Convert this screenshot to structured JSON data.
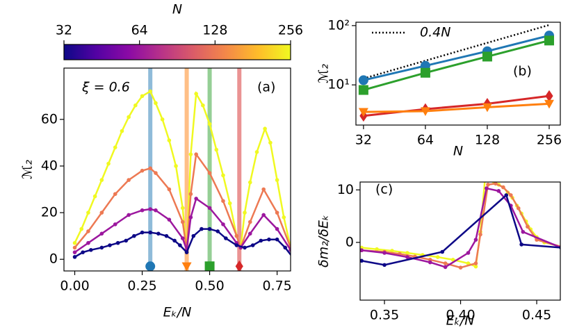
{
  "chart_data": [
    {
      "type": "line",
      "xlabel": "Eₖ/N",
      "ylabel": "ℳ₂",
      "annotations": [
        "ξ = 0.6",
        "(a)"
      ],
      "xlim": [
        -0.04,
        0.8
      ],
      "ylim": [
        -5,
        82
      ],
      "xticks": [
        {
          "value": 0,
          "label": "0.00"
        },
        0.25,
        {
          "value": 0.5,
          "label": "0.50"
        },
        0.75
      ],
      "yticks": [
        0,
        20,
        40,
        60
      ],
      "colorbar": {
        "label": "N",
        "lim": [
          32,
          256
        ],
        "scale": "log",
        "ticks": [
          32,
          64,
          128,
          256
        ],
        "colors": [
          "#0d0887",
          "#5302a3",
          "#8b0aa5",
          "#b83289",
          "#db5c68",
          "#f48849",
          "#febd2a",
          "#f0f921"
        ]
      },
      "vlines": [
        {
          "x": 0.28,
          "color": "#1f77b4",
          "marker": "circle"
        },
        {
          "x": 0.415,
          "color": "#ff7f0e",
          "marker": "triangle"
        },
        {
          "x": 0.5,
          "color": "#2ca02c",
          "marker": "square"
        },
        {
          "x": 0.61,
          "color": "#d62728",
          "marker": "diamond"
        }
      ],
      "marker_y": -3,
      "series": [
        {
          "color": "#f0f921",
          "marker": "dot",
          "x": [
            0,
            0.025,
            0.05,
            0.075,
            0.1,
            0.125,
            0.15,
            0.175,
            0.2,
            0.225,
            0.25,
            0.28,
            0.3,
            0.325,
            0.35,
            0.375,
            0.4,
            0.415,
            0.43,
            0.45,
            0.475,
            0.5,
            0.525,
            0.55,
            0.575,
            0.6,
            0.615,
            0.63,
            0.65,
            0.675,
            0.705,
            0.725,
            0.75,
            0.775,
            0.8,
            0.81
          ],
          "values": [
            7,
            13,
            20,
            27,
            34,
            41,
            48,
            55,
            61,
            66,
            70,
            72,
            67,
            60,
            51,
            40,
            22,
            3,
            45,
            71,
            66,
            58,
            47,
            36,
            24,
            10,
            5,
            20,
            33,
            46,
            56,
            50,
            34,
            18,
            5,
            1
          ]
        },
        {
          "color": "#ed7953",
          "marker": "dot",
          "x": [
            0,
            0.05,
            0.1,
            0.15,
            0.2,
            0.25,
            0.28,
            0.3,
            0.35,
            0.4,
            0.415,
            0.43,
            0.45,
            0.5,
            0.55,
            0.6,
            0.615,
            0.65,
            0.7,
            0.75,
            0.8,
            0.81
          ],
          "values": [
            5,
            12,
            20,
            28,
            34,
            38,
            39,
            37,
            30,
            16,
            4,
            28,
            45,
            37,
            25,
            10,
            5,
            16,
            30,
            20,
            5,
            1
          ]
        },
        {
          "color": "#9c179e",
          "marker": "dot",
          "x": [
            0,
            0.05,
            0.1,
            0.15,
            0.2,
            0.25,
            0.28,
            0.3,
            0.35,
            0.4,
            0.415,
            0.43,
            0.45,
            0.5,
            0.55,
            0.6,
            0.615,
            0.65,
            0.7,
            0.75,
            0.8,
            0.81
          ],
          "values": [
            3,
            7,
            11,
            15,
            19,
            21,
            21.5,
            21,
            17,
            9,
            4,
            18,
            26,
            22,
            15,
            7,
            5,
            11,
            19,
            13,
            4,
            1
          ]
        },
        {
          "color": "#0d0887",
          "marker": "dot",
          "x": [
            0,
            0.03,
            0.06,
            0.1,
            0.13,
            0.16,
            0.19,
            0.22,
            0.25,
            0.28,
            0.31,
            0.34,
            0.37,
            0.39,
            0.415,
            0.44,
            0.47,
            0.5,
            0.53,
            0.56,
            0.6,
            0.63,
            0.66,
            0.69,
            0.72,
            0.75,
            0.78,
            0.81
          ],
          "values": [
            1,
            3,
            4,
            5,
            6,
            7,
            8,
            10,
            11.5,
            11.5,
            11,
            10,
            8,
            6,
            3,
            10,
            13,
            13,
            12,
            9,
            6,
            5,
            6,
            8,
            8.5,
            8.5,
            5,
            0.5
          ]
        }
      ]
    },
    {
      "type": "line",
      "xlabel": "N",
      "ylabel": "ℳ₂",
      "annotations": [
        "(b)"
      ],
      "xscale": "log",
      "yscale": "log",
      "xlim": [
        29.4,
        290
      ],
      "ylim": [
        2.1,
        114
      ],
      "xticks": [
        32,
        64,
        128,
        256
      ],
      "yticks": [
        {
          "value": 10,
          "label": "10¹"
        },
        {
          "value": 100,
          "label": "10²"
        }
      ],
      "x": [
        32,
        64,
        128,
        256
      ],
      "series": [
        {
          "name": "0.4N",
          "color": "#000000",
          "dash": "dotted",
          "values": [
            12.8,
            25.6,
            51.2,
            102.4
          ]
        },
        {
          "color": "#1f77b4",
          "marker": "circle",
          "values": [
            12,
            21,
            37,
            68
          ]
        },
        {
          "color": "#2ca02c",
          "marker": "square",
          "values": [
            8.2,
            16,
            30,
            56
          ]
        },
        {
          "color": "#d62728",
          "marker": "diamond",
          "values": [
            3,
            3.9,
            4.8,
            6.5
          ]
        },
        {
          "color": "#ff7f0e",
          "marker": "triangle",
          "values": [
            3.5,
            3.6,
            4.2,
            4.8
          ]
        }
      ]
    },
    {
      "type": "line",
      "xlabel": "Eₖ/N",
      "ylabel": "δm₂/δEₖ",
      "annotations": [
        "(c)"
      ],
      "xlim": [
        0.334,
        0.4655
      ],
      "ylim": [
        -11,
        11.5
      ],
      "xticks": [
        0.35,
        {
          "value": 0.4,
          "label": "0.40"
        },
        0.45
      ],
      "yticks": [
        0,
        10
      ],
      "series": [
        {
          "color": "#f0f921",
          "marker": "dot",
          "x": [
            0.335,
            0.345,
            0.355,
            0.365,
            0.375,
            0.385,
            0.395,
            0.405,
            0.41,
            0.413,
            0.416,
            0.419,
            0.422,
            0.425,
            0.428,
            0.431,
            0.434,
            0.437,
            0.44,
            0.443,
            0.446,
            0.45,
            0.455,
            0.466
          ],
          "values": [
            -1,
            -1.3,
            -1.6,
            -2,
            -2.4,
            -2.8,
            -3.3,
            -4,
            -4.6,
            2,
            12,
            11.8,
            11.5,
            11,
            10.5,
            9.5,
            8.5,
            7,
            5.5,
            4,
            2.5,
            1,
            0,
            -0.8
          ]
        },
        {
          "color": "#ed7953",
          "marker": "dot",
          "x": [
            0.335,
            0.35,
            0.36,
            0.37,
            0.38,
            0.39,
            0.4,
            0.41,
            0.413,
            0.418,
            0.423,
            0.428,
            0.433,
            0.438,
            0.444,
            0.45,
            0.466
          ],
          "values": [
            -1.5,
            -1.8,
            -2.2,
            -2.7,
            -3.3,
            -4,
            -4.8,
            -4,
            1.5,
            11,
            11.2,
            10.5,
            9,
            6.5,
            3,
            0.5,
            -0.8
          ]
        },
        {
          "color": "#9c179e",
          "marker": "dot",
          "x": [
            0.335,
            0.35,
            0.365,
            0.38,
            0.39,
            0.405,
            0.41,
            0.417,
            0.425,
            0.433,
            0.441,
            0.466
          ],
          "values": [
            -1.5,
            -2,
            -2.8,
            -3.8,
            -4.7,
            -2,
            0.5,
            10.3,
            9.8,
            7,
            2,
            -1
          ]
        },
        {
          "color": "#0d0887",
          "marker": "dot",
          "x": [
            0.335,
            0.35,
            0.388,
            0.43,
            0.44,
            0.466
          ],
          "values": [
            -3.5,
            -4.3,
            -1.8,
            9,
            -0.4,
            -1
          ]
        }
      ]
    }
  ]
}
